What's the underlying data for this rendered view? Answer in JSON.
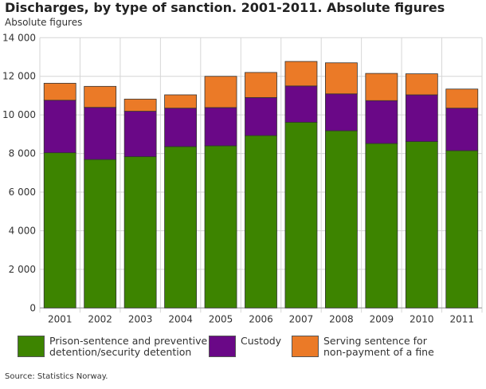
{
  "chart_data": {
    "type": "bar",
    "stacked": true,
    "title": "Discharges, by type of sanction. 2001-2011. Absolute figures",
    "ylabel": "Absolute figures",
    "xlabel": "",
    "ylim": [
      0,
      14000
    ],
    "yticks": [
      "0",
      "2 000",
      "4 000",
      "6 000",
      "8 000",
      "10 000",
      "12 000",
      "14 000"
    ],
    "grid": true,
    "legend_position": "bottom",
    "categories": [
      "2001",
      "2002",
      "2003",
      "2004",
      "2005",
      "2006",
      "2007",
      "2008",
      "2009",
      "2010",
      "2011"
    ],
    "series": [
      {
        "name": "Prison-sentence and preventive detention/security detention",
        "color": "#3d8400",
        "values": [
          8040,
          7690,
          7840,
          8360,
          8400,
          8930,
          9620,
          9180,
          8520,
          8620,
          8150
        ]
      },
      {
        "name": "Custody",
        "color": "#6a0887",
        "values": [
          2720,
          2700,
          2350,
          1990,
          1980,
          1970,
          1880,
          1910,
          2220,
          2420,
          2200
        ]
      },
      {
        "name": "Serving sentence for non-payment of a fine",
        "color": "#eb7a27",
        "values": [
          880,
          1090,
          630,
          690,
          1620,
          1300,
          1270,
          1610,
          1410,
          1090,
          990
        ]
      }
    ],
    "source": "Source: Statistics Norway."
  },
  "legend": {
    "item0_line1": "Prison-sentence and preventive",
    "item0_line2": "detention/security detention",
    "item1_line1": "Custody",
    "item2_line1": "Serving sentence for",
    "item2_line2": "non-payment of a fine"
  }
}
